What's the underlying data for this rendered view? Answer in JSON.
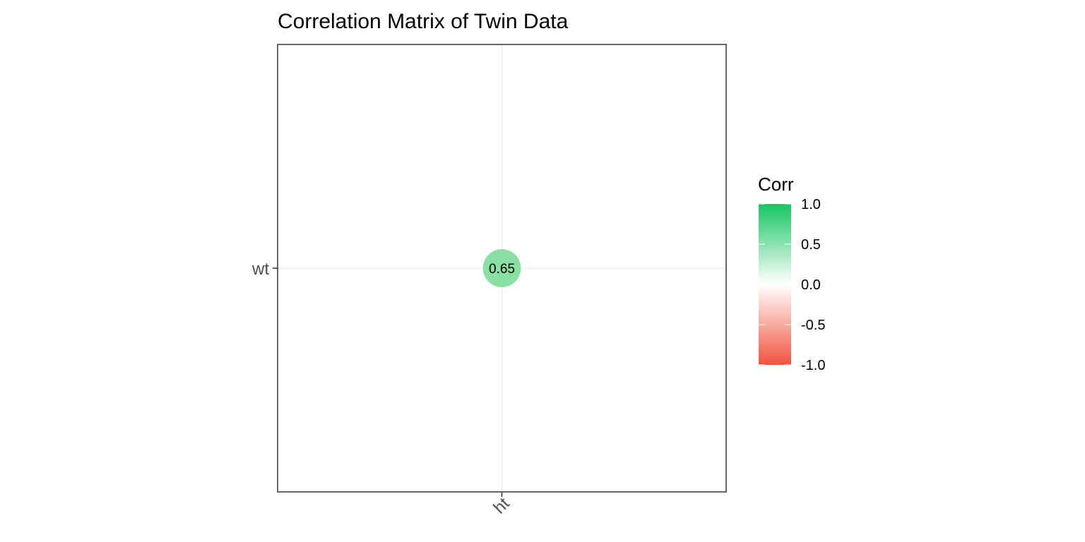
{
  "chart_data": {
    "type": "heatmap",
    "title": "Correlation Matrix of Twin Data",
    "x_categories": [
      "ht"
    ],
    "y_categories": [
      "wt"
    ],
    "cells": [
      {
        "x": "ht",
        "y": "wt",
        "value": 0.65,
        "label": "0.65"
      }
    ],
    "marker": "circle",
    "grid": true,
    "legend": {
      "title": "Corr",
      "placement": "right",
      "range": [
        -1,
        1
      ],
      "ticks": [
        1,
        0.5,
        0,
        -0.5,
        -1
      ],
      "tick_labels": [
        "1.0",
        "0.5",
        "0.0",
        "-0.5",
        "-1.0"
      ],
      "colors": {
        "low": "#f0543f",
        "mid": "#ffffff",
        "high": "#17c461"
      }
    },
    "colors": {
      "panel_border": "#333333",
      "grid": "#ebebeb",
      "cell_fill": "#89e0a2"
    }
  }
}
